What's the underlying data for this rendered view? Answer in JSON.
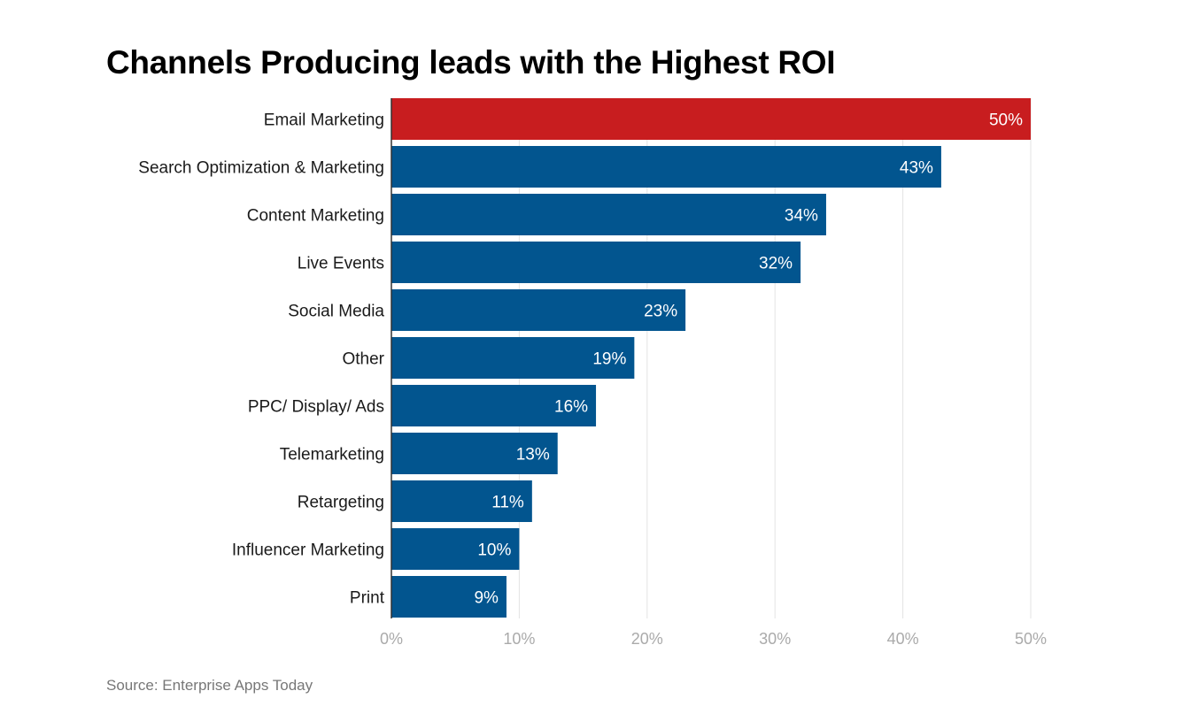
{
  "chart_data": {
    "type": "bar",
    "orientation": "horizontal",
    "title": "Channels Producing leads with the Highest ROI",
    "categories": [
      "Email Marketing",
      "Search Optimization & Marketing",
      "Content Marketing",
      "Live Events",
      "Social Media",
      "Other",
      "PPC/ Display/ Ads",
      "Telemarketing",
      "Retargeting",
      "Influencer Marketing",
      "Print"
    ],
    "values": [
      50,
      43,
      34,
      32,
      23,
      19,
      16,
      13,
      11,
      10,
      9
    ],
    "value_labels": [
      "50%",
      "43%",
      "34%",
      "32%",
      "23%",
      "19%",
      "16%",
      "13%",
      "11%",
      "10%",
      "9%"
    ],
    "highlight_index": 0,
    "xlim": [
      0,
      50
    ],
    "x_ticks": [
      0,
      10,
      20,
      30,
      40,
      50
    ],
    "x_tick_labels": [
      "0%",
      "10%",
      "20%",
      "30%",
      "40%",
      "50%"
    ],
    "xlabel": "",
    "ylabel": "",
    "grid": true,
    "colors": {
      "bar": "#02558f",
      "highlight": "#c81d1f",
      "grid": "#e3e3e3",
      "axis": "#333333",
      "category_text": "#1a1a1a",
      "tick_text": "#aaaaaa",
      "value_text": "#ffffff"
    }
  },
  "source": "Source: Enterprise Apps Today"
}
